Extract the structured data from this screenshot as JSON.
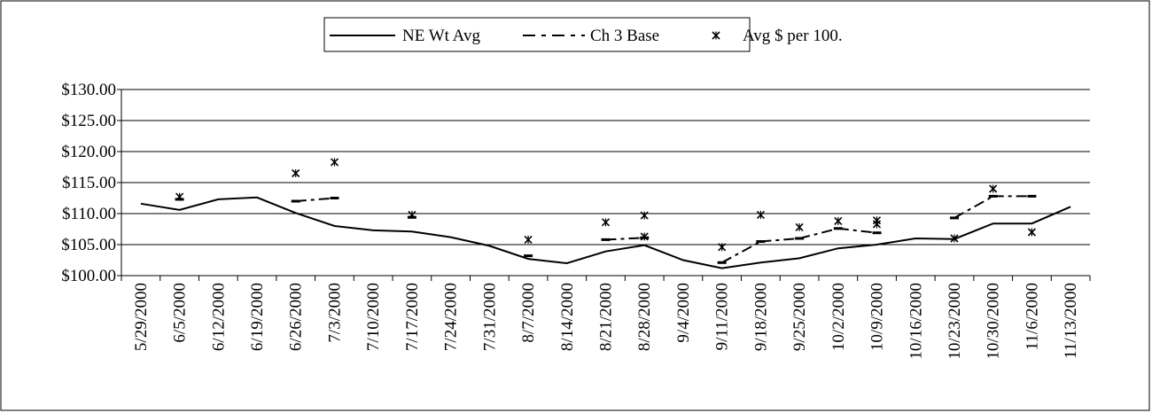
{
  "chart_data": {
    "type": "line",
    "title": "",
    "xlabel": "",
    "ylabel": "",
    "ylim": [
      100,
      130
    ],
    "y_ticks": [
      "$100.00",
      "$105.00",
      "$110.00",
      "$115.00",
      "$120.00",
      "$125.00",
      "$130.00"
    ],
    "y_tick_values": [
      100,
      105,
      110,
      115,
      120,
      125,
      130
    ],
    "grid": "horizontal",
    "legend_position": "top",
    "categories": [
      "5/29/2000",
      "6/5/2000",
      "6/12/2000",
      "6/19/2000",
      "6/26/2000",
      "7/3/2000",
      "7/10/2000",
      "7/17/2000",
      "7/24/2000",
      "7/31/2000",
      "8/7/2000",
      "8/14/2000",
      "8/21/2000",
      "8/28/2000",
      "9/4/2000",
      "9/11/2000",
      "9/18/2000",
      "9/25/2000",
      "10/2/2000",
      "10/9/2000",
      "10/16/2000",
      "10/23/2000",
      "10/30/2000",
      "11/6/2000",
      "11/13/2000"
    ],
    "series": [
      {
        "name": "NE Wt Avg",
        "style": "solid",
        "color": "#000000",
        "values": [
          111.6,
          110.6,
          112.3,
          112.6,
          110.1,
          108.0,
          107.3,
          107.1,
          106.2,
          104.8,
          102.7,
          102.0,
          103.9,
          104.9,
          102.5,
          101.2,
          102.1,
          102.8,
          104.4,
          105.0,
          106.0,
          105.9,
          108.4,
          108.4,
          111.1
        ]
      },
      {
        "name": "Ch 3 Base",
        "style": "dash-dot",
        "color": "#000000",
        "values": [
          null,
          112.3,
          null,
          null,
          112.0,
          112.5,
          null,
          109.4,
          null,
          null,
          103.2,
          null,
          105.8,
          106.1,
          null,
          102.1,
          105.5,
          106.0,
          107.6,
          106.9,
          null,
          109.3,
          112.8,
          112.8,
          null
        ]
      },
      {
        "name": "Avg $ per 100.",
        "style": "marker",
        "color": "#000000",
        "points": [
          {
            "x": "6/5/2000",
            "y": 112.7
          },
          {
            "x": "6/26/2000",
            "y": 116.5
          },
          {
            "x": "7/3/2000",
            "y": 118.3
          },
          {
            "x": "7/17/2000",
            "y": 109.8
          },
          {
            "x": "8/7/2000",
            "y": 105.8
          },
          {
            "x": "8/21/2000",
            "y": 108.6
          },
          {
            "x": "8/28/2000",
            "y": 109.7
          },
          {
            "x": "8/28/2000",
            "y": 106.3
          },
          {
            "x": "9/11/2000",
            "y": 104.6
          },
          {
            "x": "9/18/2000",
            "y": 109.8
          },
          {
            "x": "9/25/2000",
            "y": 107.8
          },
          {
            "x": "10/2/2000",
            "y": 108.8
          },
          {
            "x": "10/9/2000",
            "y": 108.9
          },
          {
            "x": "10/9/2000",
            "y": 108.3
          },
          {
            "x": "10/23/2000",
            "y": 106.0
          },
          {
            "x": "10/30/2000",
            "y": 114.0
          },
          {
            "x": "11/6/2000",
            "y": 107.0
          }
        ]
      }
    ]
  }
}
